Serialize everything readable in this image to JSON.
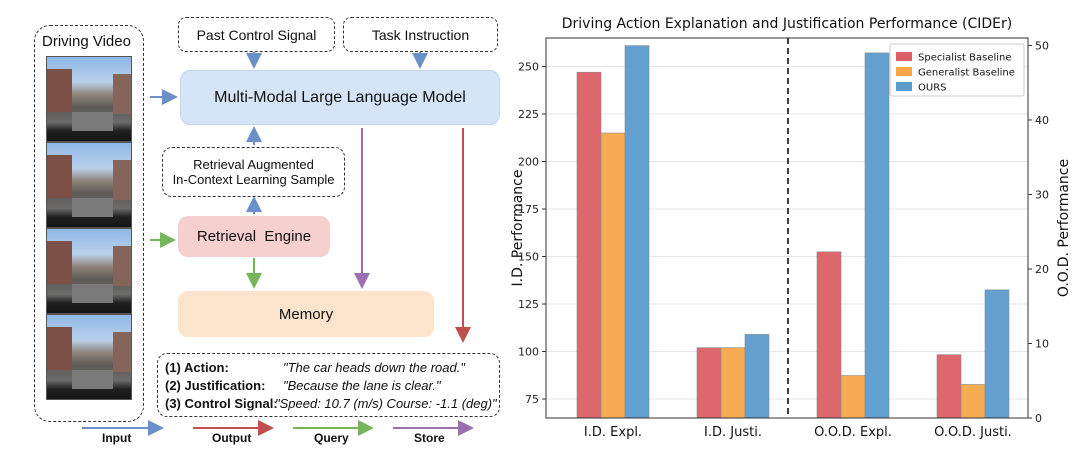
{
  "diagram": {
    "driving_video": "Driving Video",
    "past_control": "Past Control Signal",
    "task_instruction": "Task Instruction",
    "mllm": "Multi-Modal Large Language Model",
    "rag_line1": "Retrieval Augmented",
    "rag_line2": "In-Context Learning Sample",
    "retrieval_engine": "Retrieval  Engine",
    "memory": "Memory",
    "outputs": [
      {
        "key": "(1) Action:",
        "value": "\"The car heads down the road.\""
      },
      {
        "key": "(2) Justification:",
        "value": "\"Because the lane is clear.\""
      },
      {
        "key": "(3) Control Signal:",
        "value": "\"Speed:  10.7 (m/s) Course: -1.1 (deg)\""
      }
    ],
    "legend": [
      {
        "label": "Input",
        "color": "#6b8fc9"
      },
      {
        "label": "Output",
        "color": "#c0504d"
      },
      {
        "label": "Query",
        "color": "#77b55b"
      },
      {
        "label": "Store",
        "color": "#9b6fb0"
      }
    ],
    "colors": {
      "mllm_fill": "#d6e4f7",
      "retrieval_fill": "#f6cfcf",
      "memory_fill": "#fbe3cc"
    }
  },
  "chart_data": {
    "type": "bar",
    "title": "Driving Action Explanation and Justification Performance (CIDEr)",
    "ylabel": "I.D. Performance",
    "y2label": "O.O.D. Performance",
    "categories": [
      "I.D. Expl.",
      "I.D. Justi.",
      "O.O.D. Expl.",
      "O.O.D. Justi."
    ],
    "axis_for_category": [
      "left",
      "left",
      "right",
      "right"
    ],
    "ylim": [
      65,
      265
    ],
    "y2lim": [
      0,
      51
    ],
    "yticks": [
      75,
      100,
      125,
      150,
      175,
      200,
      225,
      250
    ],
    "y2ticks": [
      0,
      10,
      20,
      30,
      40,
      50
    ],
    "series": [
      {
        "name": "Specialist Baseline",
        "color": "#dc5f66",
        "values": [
          247,
          102,
          22.3,
          8.5
        ]
      },
      {
        "name": "Generalist Baseline",
        "color": "#f7a64a",
        "values": [
          215,
          102,
          5.7,
          4.5
        ]
      },
      {
        "name": "OURS",
        "color": "#5b9bcc",
        "values": [
          261,
          109,
          49,
          17.2
        ]
      }
    ],
    "legend_position": "top-right",
    "grid": true,
    "separator": "dashed vertical line between I.D. and O.O.D. groups"
  }
}
